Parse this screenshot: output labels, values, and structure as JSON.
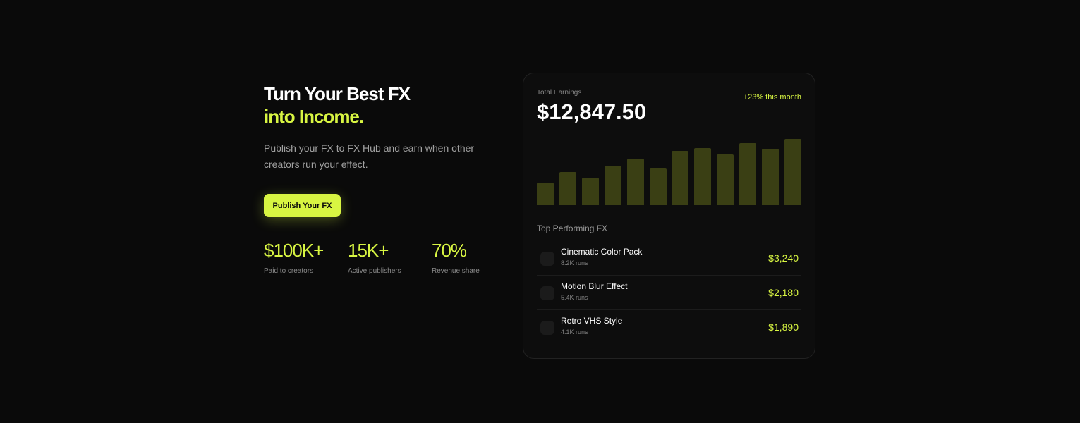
{
  "hero": {
    "title_line1": "Turn Your Best FX",
    "title_line2": "into Income.",
    "description": "Publish your FX to FX Hub and earn when other creators run your effect.",
    "button": "Publish Your FX"
  },
  "stats": [
    {
      "value": "$100K+",
      "label": "Paid to creators"
    },
    {
      "value": "15K+",
      "label": "Active publishers"
    },
    {
      "value": "70%",
      "label": "Revenue share"
    }
  ],
  "card": {
    "label": "Total Earnings",
    "total": "$12,847.50",
    "change": "+23% this month",
    "bars": [
      32,
      47,
      39,
      56,
      66,
      52,
      77,
      81,
      72,
      88,
      80,
      94
    ],
    "section_title": "Top Performing FX",
    "items": [
      {
        "name": "Cinematic Color Pack",
        "runs": "8.2K runs",
        "amount": "$3,240"
      },
      {
        "name": "Motion Blur Effect",
        "runs": "5.4K runs",
        "amount": "$2,180"
      },
      {
        "name": "Retro VHS Style",
        "runs": "4.1K runs",
        "amount": "$1,890"
      }
    ]
  }
}
